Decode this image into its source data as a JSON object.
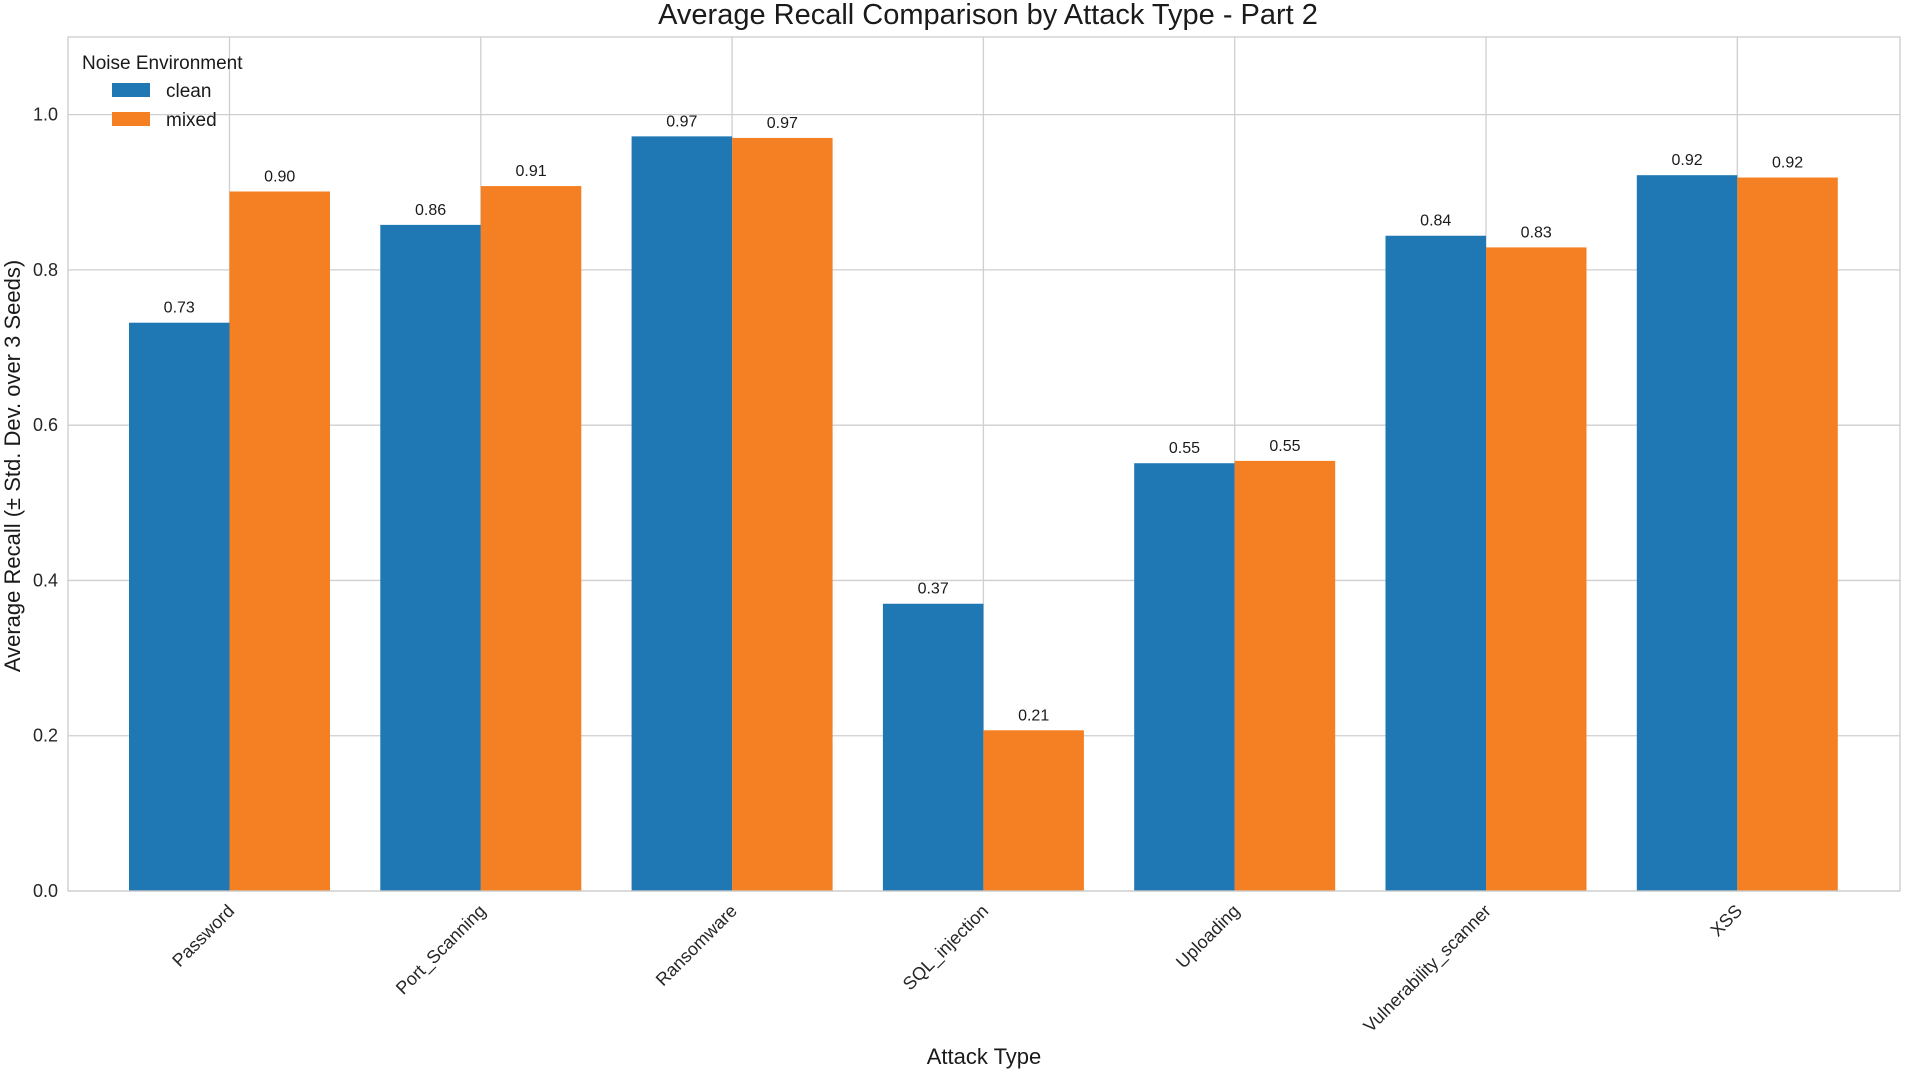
{
  "colors": {
    "clean": "#1f77b4",
    "mixed": "#f58023",
    "grid": "#cfcfcf",
    "frame": "#cccccc"
  },
  "chart_data": {
    "type": "bar",
    "title": "Average Recall Comparison by Attack Type - Part 2",
    "xlabel": "Attack Type",
    "ylabel": "Average Recall (± Std. Dev. over 3 Seeds)",
    "ylim": [
      0,
      1.1
    ],
    "yticks": [
      0.0,
      0.2,
      0.4,
      0.6,
      0.8,
      1.0
    ],
    "ytick_labels": [
      "0.0",
      "0.2",
      "0.4",
      "0.6",
      "0.8",
      "1.0"
    ],
    "grid": true,
    "categories": [
      "Password",
      "Port_Scanning",
      "Ransomware",
      "SQL_injection",
      "Uploading",
      "Vulnerability_scanner",
      "XSS"
    ],
    "legend": {
      "title": "Noise Environment",
      "placement": "top-left"
    },
    "series": [
      {
        "name": "clean",
        "values": [
          0.732,
          0.858,
          0.972,
          0.37,
          0.551,
          0.844,
          0.922
        ],
        "labels": [
          "0.73",
          "0.86",
          "0.97",
          "0.37",
          "0.55",
          "0.84",
          "0.92"
        ]
      },
      {
        "name": "mixed",
        "values": [
          0.901,
          0.908,
          0.97,
          0.207,
          0.554,
          0.829,
          0.919
        ],
        "labels": [
          "0.90",
          "0.91",
          "0.97",
          "0.21",
          "0.55",
          "0.83",
          "0.92"
        ]
      }
    ]
  }
}
